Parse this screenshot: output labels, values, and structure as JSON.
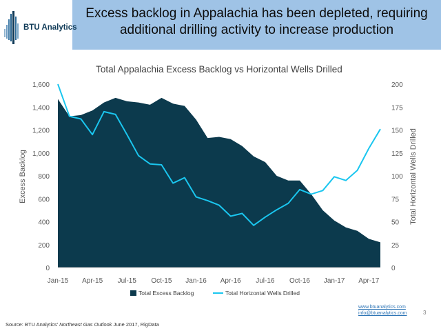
{
  "header": {
    "logo_text": "BTU Analytics",
    "headline_line1": "Excess backlog in Appalachia has been depleted, requiring",
    "headline_line2": "additional drilling activity to increase production",
    "bg_color": "#9fc3e6"
  },
  "chart_data": {
    "type": "area+line",
    "title": "Total Appalachia Excess Backlog vs Horizontal Wells Drilled",
    "ylabel": "Excess Backlog",
    "y2label": "Total Horizontal Wells Drilled",
    "ylim": [
      0,
      1600
    ],
    "y2lim": [
      0,
      200
    ],
    "yticks": [
      "0",
      "200",
      "400",
      "600",
      "800",
      "1,000",
      "1,200",
      "1,400",
      "1,600"
    ],
    "y2ticks": [
      "0",
      "25",
      "50",
      "75",
      "100",
      "125",
      "150",
      "175",
      "200"
    ],
    "xticks": [
      "Jan-15",
      "Apr-15",
      "Jul-15",
      "Oct-15",
      "Jan-16",
      "Apr-16",
      "Jul-16",
      "Oct-16",
      "Jan-17",
      "Apr-17"
    ],
    "months": [
      "Jan-15",
      "Feb-15",
      "Mar-15",
      "Apr-15",
      "May-15",
      "Jun-15",
      "Jul-15",
      "Aug-15",
      "Sep-15",
      "Oct-15",
      "Nov-15",
      "Dec-15",
      "Jan-16",
      "Feb-16",
      "Mar-16",
      "Apr-16",
      "May-16",
      "Jun-16",
      "Jul-16",
      "Aug-16",
      "Sep-16",
      "Oct-16",
      "Nov-16",
      "Dec-16",
      "Jan-17",
      "Feb-17",
      "Mar-17",
      "Apr-17",
      "May-17"
    ],
    "series": [
      {
        "name": "Total Excess Backlog",
        "axis": "left",
        "style": "area",
        "color": "#0c3a4d",
        "values": [
          1470,
          1320,
          1330,
          1370,
          1440,
          1480,
          1450,
          1440,
          1420,
          1480,
          1430,
          1410,
          1290,
          1130,
          1140,
          1120,
          1060,
          970,
          920,
          800,
          760,
          760,
          640,
          500,
          410,
          350,
          320,
          250,
          220
        ]
      },
      {
        "name": "Total Horizontal Wells Drilled",
        "axis": "right",
        "style": "line",
        "color": "#1ac6ef",
        "values": [
          200,
          165,
          162,
          145,
          170,
          167,
          145,
          122,
          113,
          112,
          92,
          98,
          77,
          73,
          68,
          56,
          59,
          46,
          55,
          63,
          70,
          85,
          80,
          84,
          99,
          95,
          106,
          130,
          151
        ]
      }
    ],
    "legend_position": "bottom"
  },
  "footer": {
    "link1": "www.btuanalytics.com",
    "link2": "info@btuanalytics.com",
    "page_number": "3",
    "source_prefix": "Source: BTU Analytics' ",
    "source_italic": "Northeast Gas Outlook",
    "source_suffix": " June 2017, RigData"
  }
}
